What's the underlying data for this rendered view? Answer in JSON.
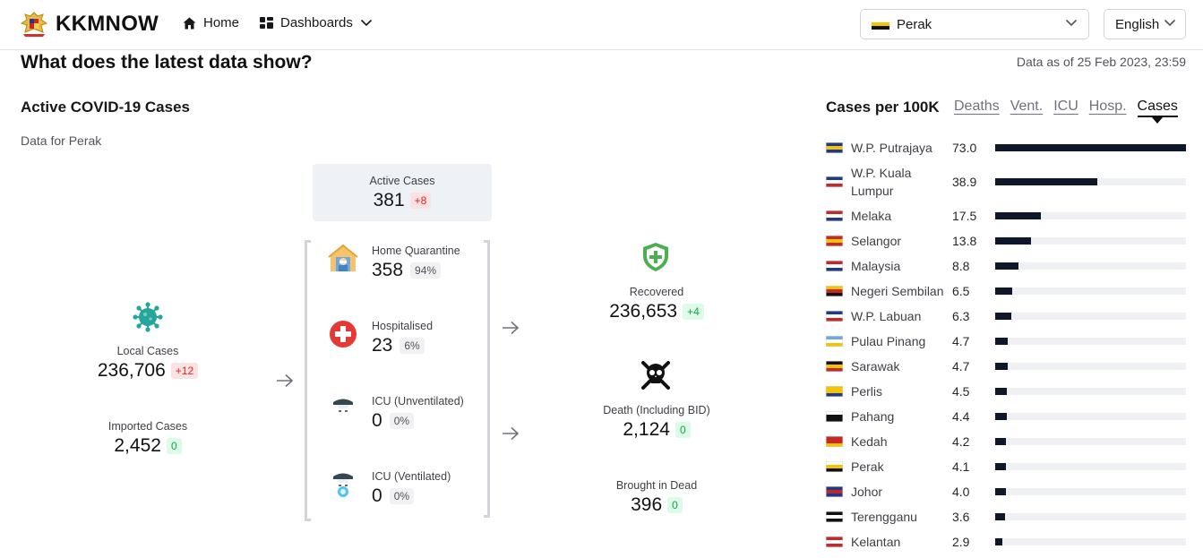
{
  "header": {
    "brand": "KKMNOW",
    "nav": {
      "home": "Home",
      "dashboards": "Dashboards"
    },
    "state_select": "Perak",
    "language_select": "English"
  },
  "section": {
    "title": "What does the latest data show?",
    "data_as_of": "Data as of 25 Feb 2023, 23:59"
  },
  "cases_panel": {
    "title": "Active COVID-19 Cases",
    "subtitle": "Data for Perak",
    "active": {
      "label": "Active Cases",
      "value": "381",
      "delta": "+8"
    },
    "local": {
      "label": "Local Cases",
      "value": "236,706",
      "delta": "+12"
    },
    "imported": {
      "label": "Imported Cases",
      "value": "2,452",
      "delta": "0"
    },
    "home_quarantine": {
      "label": "Home Quarantine",
      "value": "358",
      "pct": "94%"
    },
    "hospitalised": {
      "label": "Hospitalised",
      "value": "23",
      "pct": "6%"
    },
    "icu_unventilated": {
      "label": "ICU (Unventilated)",
      "value": "0",
      "pct": "0%"
    },
    "icu_ventilated": {
      "label": "ICU (Ventilated)",
      "value": "0",
      "pct": "0%"
    },
    "recovered": {
      "label": "Recovered",
      "value": "236,653",
      "delta": "+4"
    },
    "death": {
      "label": "Death (Including BID)",
      "value": "2,124",
      "delta": "0"
    },
    "brought_in_dead": {
      "label": "Brought in Dead",
      "value": "396",
      "delta": "0"
    }
  },
  "ranking_panel": {
    "title": "Cases per 100K",
    "tabs": [
      "Deaths",
      "Vent.",
      "ICU",
      "Hosp.",
      "Cases"
    ],
    "active_tab": "Cases",
    "bar_color": "#0f172a",
    "track_color": "#eef0f4",
    "max_value": 73.0,
    "rows": [
      {
        "state": "W.P. Putrajaya",
        "value": "73.0",
        "num": 73.0
      },
      {
        "state": "W.P. Kuala Lumpur",
        "value": "38.9",
        "num": 38.9
      },
      {
        "state": "Melaka",
        "value": "17.5",
        "num": 17.5
      },
      {
        "state": "Selangor",
        "value": "13.8",
        "num": 13.8
      },
      {
        "state": "Malaysia",
        "value": "8.8",
        "num": 8.8
      },
      {
        "state": "Negeri Sembilan",
        "value": "6.5",
        "num": 6.5
      },
      {
        "state": "W.P. Labuan",
        "value": "6.3",
        "num": 6.3
      },
      {
        "state": "Pulau Pinang",
        "value": "4.7",
        "num": 4.7
      },
      {
        "state": "Sarawak",
        "value": "4.7",
        "num": 4.7
      },
      {
        "state": "Perlis",
        "value": "4.5",
        "num": 4.5
      },
      {
        "state": "Pahang",
        "value": "4.4",
        "num": 4.4
      },
      {
        "state": "Kedah",
        "value": "4.2",
        "num": 4.2
      },
      {
        "state": "Perak",
        "value": "4.1",
        "num": 4.1
      },
      {
        "state": "Johor",
        "value": "4.0",
        "num": 4.0
      },
      {
        "state": "Terengganu",
        "value": "3.6",
        "num": 3.6
      },
      {
        "state": "Kelantan",
        "value": "2.9",
        "num": 2.9
      }
    ]
  },
  "icons": [
    "coat-of-arms-icon",
    "home-icon",
    "dashboard-icon",
    "chevron-down-icon",
    "virus-icon",
    "house-quarantine-icon",
    "hospital-cross-icon",
    "icu-bed-icon",
    "ventilator-icon",
    "shield-plus-icon",
    "skull-icon",
    "arrow-right-icon"
  ]
}
